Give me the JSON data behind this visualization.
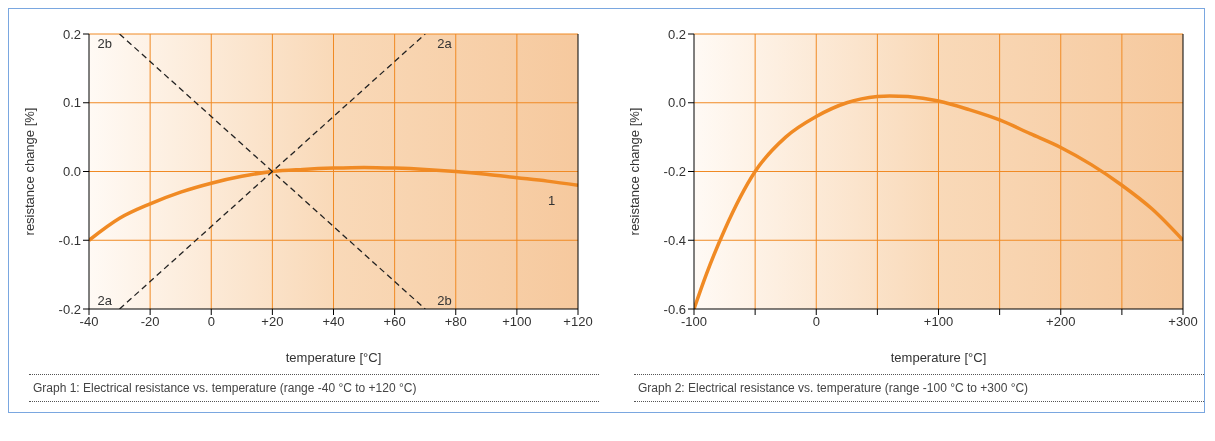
{
  "chart_data": [
    {
      "type": "line",
      "xlabel": "temperature [°C]",
      "ylabel": "resistance change [%]",
      "xlim": [
        -40,
        120
      ],
      "ylim": [
        -0.2,
        0.2
      ],
      "xticks": [
        -40,
        -20,
        0,
        {
          "value": 20,
          "label": "+20"
        },
        {
          "value": 40,
          "label": "+40"
        },
        {
          "value": 60,
          "label": "+60"
        },
        {
          "value": 80,
          "label": "+80"
        },
        {
          "value": 100,
          "label": "+100"
        },
        {
          "value": 120,
          "label": "+120"
        }
      ],
      "yticks": [
        -0.2,
        -0.1,
        {
          "value": 0,
          "label": "0.0"
        },
        0.1,
        0.2
      ],
      "grid": true,
      "marker": "none",
      "series": [
        {
          "name": "1",
          "color": "#f08a24",
          "line_style": "solid",
          "x": [
            -40,
            -30,
            -20,
            -10,
            0,
            10,
            20,
            30,
            40,
            50,
            60,
            70,
            80,
            90,
            100,
            110,
            120
          ],
          "values": [
            -0.1,
            -0.068,
            -0.047,
            -0.03,
            -0.017,
            -0.007,
            0,
            0.003,
            0.005,
            0.006,
            0.005,
            0.003,
            0,
            -0.004,
            -0.009,
            -0.014,
            -0.02
          ]
        },
        {
          "name": "2a",
          "color": "#222222",
          "line_style": "dashed",
          "x": [
            -30,
            70
          ],
          "values": [
            -0.2,
            0.2
          ]
        },
        {
          "name": "2b",
          "color": "#222222",
          "line_style": "dashed",
          "x": [
            -30,
            70
          ],
          "values": [
            0.2,
            -0.2
          ]
        }
      ],
      "annotations": [
        "Graph 1: Electrical resistance vs. temperature (range -40 °C to +120 °C)"
      ]
    },
    {
      "type": "line",
      "xlabel": "temperature [°C]",
      "ylabel": "resistance change [%]",
      "xlim": [
        -100,
        300
      ],
      "ylim": [
        -0.6,
        0.2
      ],
      "xticks": [
        -100,
        {
          "value": -50,
          "label": null
        },
        0,
        {
          "value": 50,
          "label": null
        },
        {
          "value": 100,
          "label": "+100"
        },
        {
          "value": 150,
          "label": null
        },
        {
          "value": 200,
          "label": "+200"
        },
        {
          "value": 250,
          "label": null
        },
        {
          "value": 300,
          "label": "+300"
        }
      ],
      "yticks": [
        -0.6,
        -0.4,
        -0.2,
        {
          "value": 0,
          "label": "0.0"
        },
        0.2
      ],
      "grid": true,
      "marker": "none",
      "series": [
        {
          "color": "#f08a24",
          "line_style": "solid",
          "x": [
            -100,
            -90,
            -75,
            -50,
            -25,
            0,
            25,
            50,
            60,
            75,
            100,
            125,
            150,
            175,
            200,
            225,
            250,
            275,
            300
          ],
          "values": [
            -0.6,
            -0.5,
            -0.37,
            -0.2,
            -0.1,
            -0.04,
            0,
            0.018,
            0.02,
            0.018,
            0.005,
            -0.02,
            -0.05,
            -0.09,
            -0.13,
            -0.18,
            -0.24,
            -0.31,
            -0.4
          ]
        }
      ],
      "annotations": [
        "Graph 2: Electrical resistance vs. temperature (range -100 °C to +300 °C)"
      ]
    }
  ]
}
